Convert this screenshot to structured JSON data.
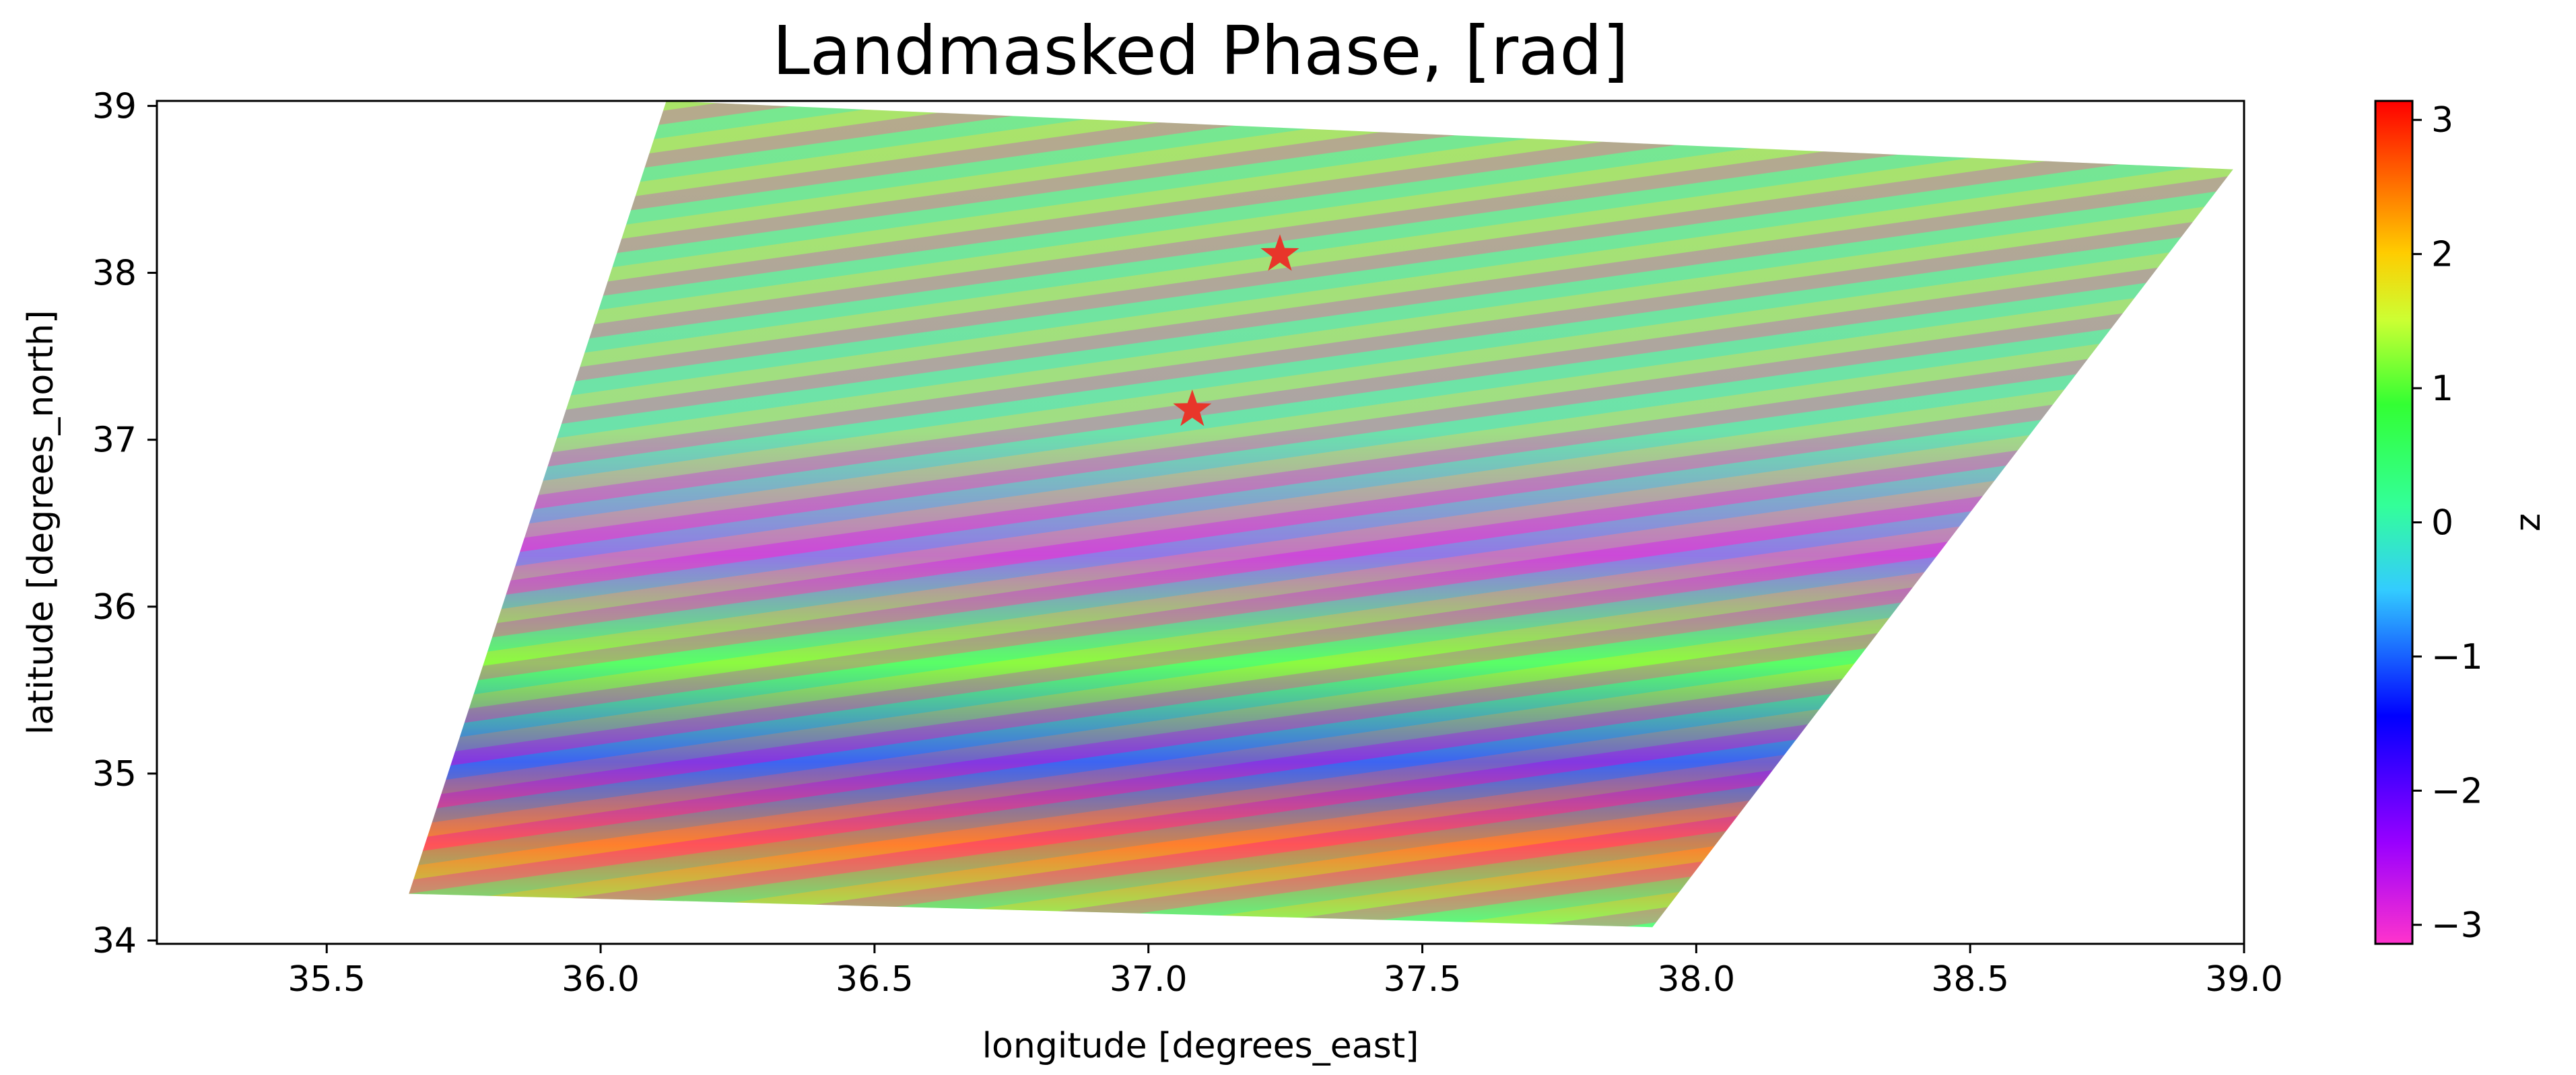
{
  "chart_data": {
    "type": "heatmap",
    "title": "Landmasked Phase, [rad]",
    "xlabel": "longitude [degrees_east]",
    "ylabel": "latitude [degrees_north]",
    "xlim": [
      35.19,
      39.0
    ],
    "ylim": [
      33.98,
      39.03
    ],
    "x_ticks": [
      35.5,
      36.0,
      36.5,
      37.0,
      37.5,
      38.0,
      38.5,
      39.0
    ],
    "x_tick_labels": [
      "35.5",
      "36.0",
      "36.5",
      "37.0",
      "37.5",
      "38.0",
      "38.5",
      "39.0"
    ],
    "y_ticks": [
      34,
      35,
      36,
      37,
      38,
      39
    ],
    "y_tick_labels": [
      "34",
      "35",
      "36",
      "37",
      "38",
      "39"
    ],
    "colorbar": {
      "label": "z",
      "range": [
        -3.1416,
        3.1416
      ],
      "ticks": [
        -3,
        -2,
        -1,
        0,
        1,
        2,
        3
      ],
      "tick_labels": [
        "−3",
        "−2",
        "−1",
        "0",
        "1",
        "2",
        "3"
      ],
      "colormap": [
        "#ff33cc",
        "#9900ff",
        "#0000ff",
        "#33ccff",
        "#33ff99",
        "#33ff33",
        "#ccff33",
        "#ffcc00",
        "#ff6600",
        "#ff0000"
      ]
    },
    "data_footprint": {
      "description": "parallelogram swath of wrapped phase",
      "corners_lonlat": [
        [
          35.65,
          34.28
        ],
        [
          37.92,
          34.08
        ],
        [
          38.98,
          38.62
        ],
        [
          36.12,
          39.03
        ]
      ]
    },
    "markers": [
      {
        "lon": 37.24,
        "lat": 38.11,
        "symbol": "star",
        "color": "#e8362a"
      },
      {
        "lon": 37.08,
        "lat": 37.18,
        "symbol": "star",
        "color": "#e8362a"
      }
    ],
    "grid": false,
    "legend": "none"
  }
}
